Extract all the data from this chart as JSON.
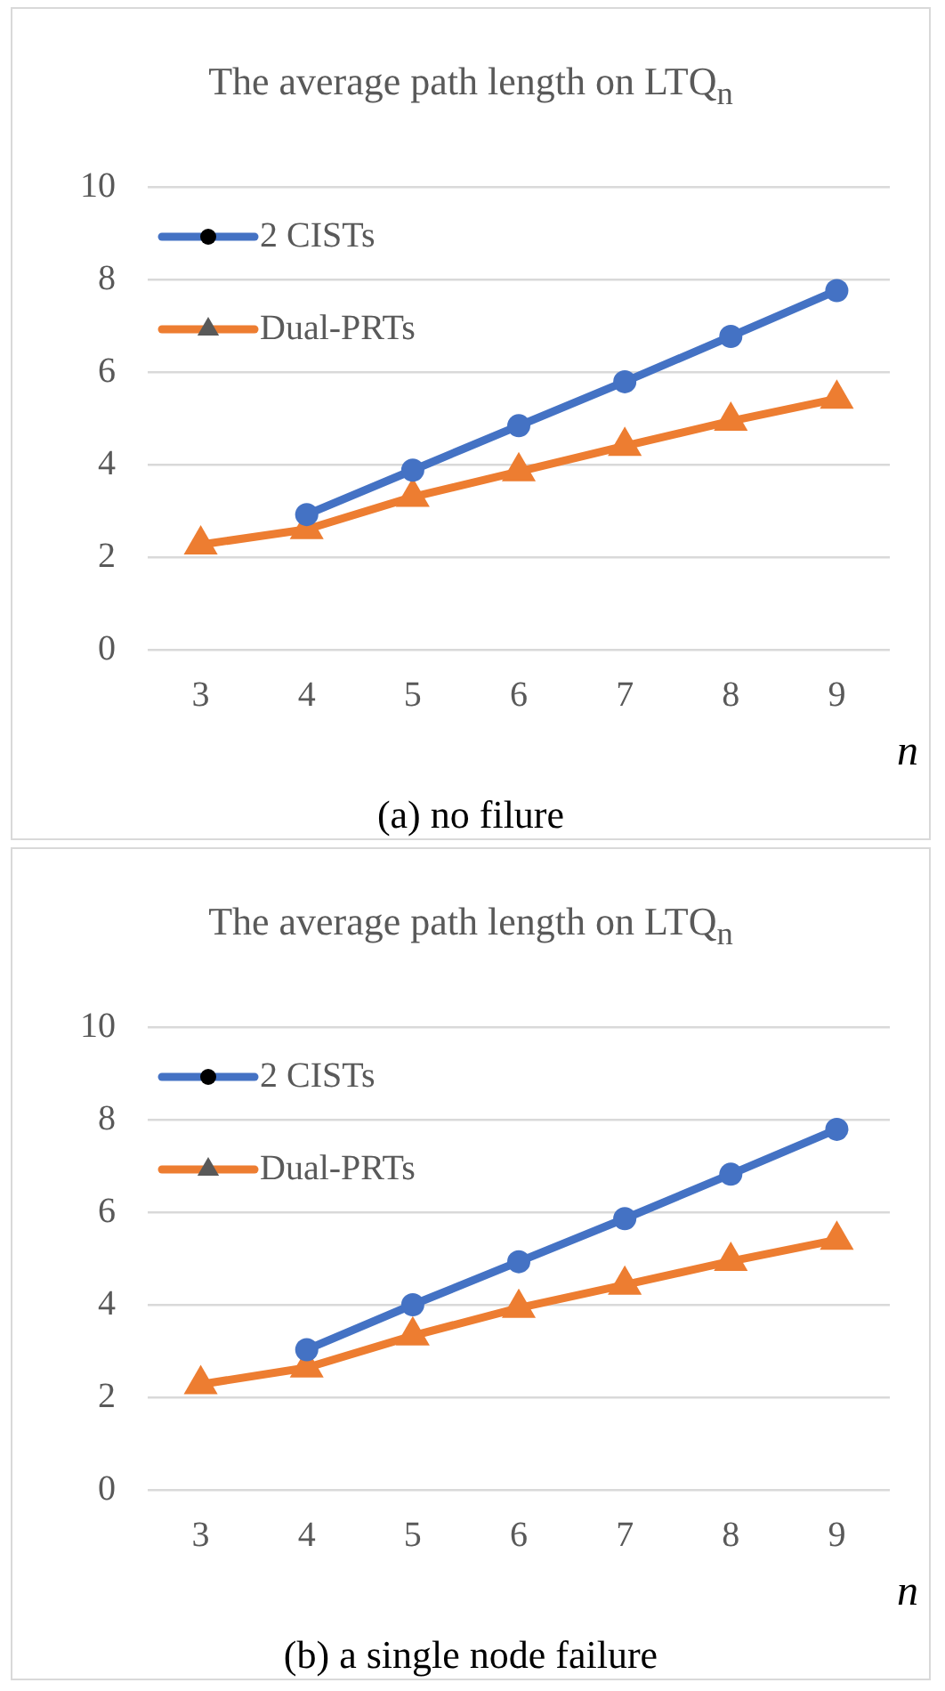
{
  "chart_data": [
    {
      "type": "line",
      "title": "The average path length on LTQ$_{n}$",
      "xlabel": "n",
      "annotations": [
        "(a) no filure"
      ],
      "categories": [
        "3",
        "4",
        "5",
        "6",
        "7",
        "8",
        "9"
      ],
      "series": [
        {
          "name": "2 CISTs",
          "color": "#4472c4",
          "marker": "circle",
          "values": [
            null,
            2.92,
            3.88,
            4.84,
            5.79,
            6.77,
            7.76
          ]
        },
        {
          "name": "Dual-PRTs",
          "color": "#ed7d31",
          "marker": "triangle",
          "values": [
            2.27,
            2.6,
            3.3,
            3.85,
            4.4,
            4.94,
            5.42
          ]
        }
      ],
      "ylim": [
        0,
        10
      ],
      "yticks": [
        0,
        2,
        4,
        6,
        8,
        10
      ],
      "grid": "y",
      "legend": "top left",
      "line_style": "solid"
    },
    {
      "type": "line",
      "title": "The average path length on LTQ$_{n}$",
      "xlabel": "n",
      "annotations": [
        "(b) a single node failure"
      ],
      "categories": [
        "3",
        "4",
        "5",
        "6",
        "7",
        "8",
        "9"
      ],
      "series": [
        {
          "name": "2 CISTs",
          "color": "#4472c4",
          "marker": "circle",
          "values": [
            null,
            3.03,
            4.0,
            4.93,
            5.86,
            6.82,
            7.79
          ]
        },
        {
          "name": "Dual-PRTs",
          "color": "#ed7d31",
          "marker": "triangle",
          "values": [
            2.28,
            2.64,
            3.33,
            3.93,
            4.43,
            4.94,
            5.4
          ]
        }
      ],
      "ylim": [
        0,
        10
      ],
      "yticks": [
        0,
        2,
        4,
        6,
        8,
        10
      ],
      "grid": "y",
      "legend": "top left",
      "line_style": "solid"
    }
  ]
}
